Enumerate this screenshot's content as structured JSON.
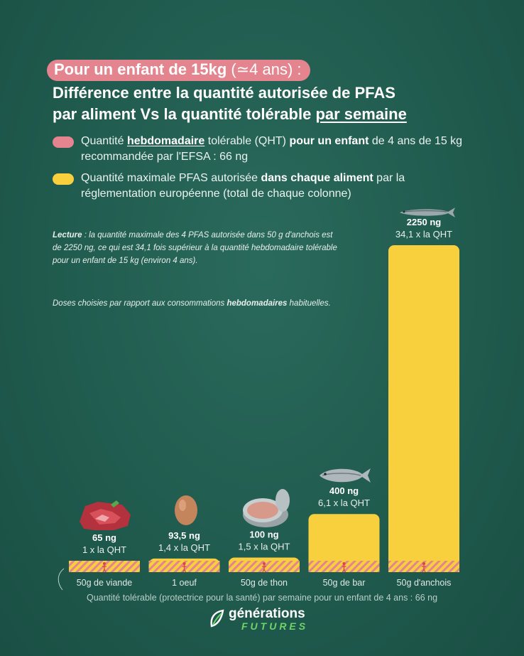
{
  "title": {
    "pill_bold": "Pour un enfant de 15kg",
    "pill_light": " (≃4 ans) :",
    "line1": "Différence entre la quantité autorisée de PFAS",
    "line2_a": "par aliment Vs la quantité tolérable ",
    "line2_b": "par semaine"
  },
  "legend": {
    "qht": {
      "color": "#e3848e",
      "t1": "Quantité ",
      "t2": "hebdomadaire",
      "t3": " tolérable (QHT) ",
      "t4": "pour un enfant",
      "t5": " de 4 ans de 15 kg recommandée par l'EFSA : 66 ng"
    },
    "max": {
      "color": "#f8cf3d",
      "t1": "Quantité maximale PFAS autorisée ",
      "t2": "dans chaque aliment",
      "t3": " par la réglementation européenne (total de chaque colonne)"
    }
  },
  "note": {
    "p1_bold": "Lecture",
    "p1_rest": " : la quantité maximale des 4 PFAS autorisée dans 50 g d'anchois est de 2250 ng, ce qui est 34,1 fois supérieur à la quantité hebdomadaire tolérable pour un enfant de 15 kg (environ 4 ans).",
    "p2_a": "Doses choisies par rapport aux consommations ",
    "p2_b": "hebdomadaires",
    "p2_c": " habituelles."
  },
  "footer": "Quantité tolérable (protectrice pour la santé) par semaine pour un enfant de 4 ans : 66 ng",
  "logo": {
    "line1": "générations",
    "line2": "FUTURES"
  },
  "chart_data": {
    "type": "bar",
    "categories": [
      "50g de viande",
      "1 oeuf",
      "50g de thon",
      "50g de bar",
      "50g d'anchois"
    ],
    "values": [
      65,
      93.5,
      100,
      400,
      2250
    ],
    "value_labels": [
      "65 ng",
      "93,5 ng",
      "100 ng",
      "400 ng",
      "2250 ng"
    ],
    "ratio_labels": [
      "1 x la QHT",
      "1,4 x la QHT",
      "1,5 x la QHT",
      "6,1 x la QHT",
      "34,1 x la QHT"
    ],
    "icons": [
      "meat-icon",
      "egg-icon",
      "tuna-can-icon",
      "sea-bass-icon",
      "anchovy-icon"
    ],
    "reference_value": 66,
    "ylim": [
      0,
      2250
    ],
    "bar_color": "#f8cf3d",
    "hatch_color": "#e3848e"
  }
}
